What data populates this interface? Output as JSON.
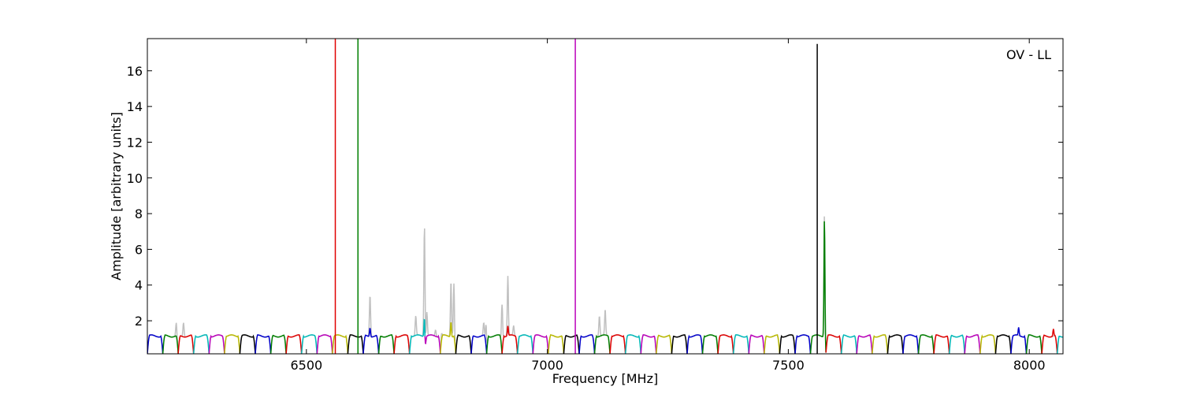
{
  "chart_data": {
    "type": "line",
    "xlabel": "Frequency [MHz]",
    "ylabel": "Amplitude [arbitrary units]",
    "annotation": "OV - LL",
    "xlim": [
      6170,
      8070
    ],
    "ylim": [
      0.15,
      17.8
    ],
    "xticks": [
      6500,
      7000,
      7500,
      8000
    ],
    "yticks": [
      2,
      4,
      6,
      8,
      10,
      12,
      14,
      16
    ],
    "grid": false,
    "legend": "none",
    "band_colors": [
      "#0000cc",
      "#007f00",
      "#e00000",
      "#00bbbb",
      "#bb00bb",
      "#bbbb00",
      "#000000"
    ],
    "band_width_mhz": 32,
    "band_start_mhz": 6170,
    "band_baseline": 1.15,
    "band_dip": 0.15,
    "raw_color": "#c0c0c0",
    "raw_spikes": [
      {
        "x": 6230,
        "y": 1.9
      },
      {
        "x": 6245,
        "y": 1.95
      },
      {
        "x": 6632,
        "y": 3.5
      },
      {
        "x": 6727,
        "y": 2.25
      },
      {
        "x": 6745,
        "y": 8.0
      },
      {
        "x": 6750,
        "y": 2.5
      },
      {
        "x": 6768,
        "y": 1.5
      },
      {
        "x": 6780,
        "y": 1.55
      },
      {
        "x": 6800,
        "y": 4.3
      },
      {
        "x": 6806,
        "y": 4.1
      },
      {
        "x": 6868,
        "y": 1.85
      },
      {
        "x": 6873,
        "y": 2.4
      },
      {
        "x": 6906,
        "y": 3.9
      },
      {
        "x": 6918,
        "y": 4.5
      },
      {
        "x": 6930,
        "y": 1.7
      },
      {
        "x": 7108,
        "y": 2.3
      },
      {
        "x": 7120,
        "y": 2.6
      },
      {
        "x": 7575,
        "y": 8.05
      }
    ],
    "calibrated_spikes": [
      {
        "x": 6632,
        "y": 1.65,
        "color": "#bb00bb"
      },
      {
        "x": 6745,
        "y": 2.8,
        "color": "#0000cc"
      },
      {
        "x": 6800,
        "y": 2.0,
        "color": "#e00000"
      },
      {
        "x": 6918,
        "y": 1.7,
        "color": "#000000"
      },
      {
        "x": 7575,
        "y": 7.8,
        "color": "#000000"
      },
      {
        "x": 7978,
        "y": 1.6,
        "color": "#bbbb00"
      },
      {
        "x": 8050,
        "y": 1.55,
        "color": "#0000cc"
      }
    ],
    "vertical_lines": [
      {
        "x": 6560,
        "ymax": 17.8,
        "color": "#e00000"
      },
      {
        "x": 6607,
        "ymax": 17.8,
        "color": "#007f00"
      },
      {
        "x": 7058,
        "ymax": 17.8,
        "color": "#bb00bb"
      },
      {
        "x": 7560,
        "ymax": 17.5,
        "color": "#000000"
      }
    ]
  }
}
